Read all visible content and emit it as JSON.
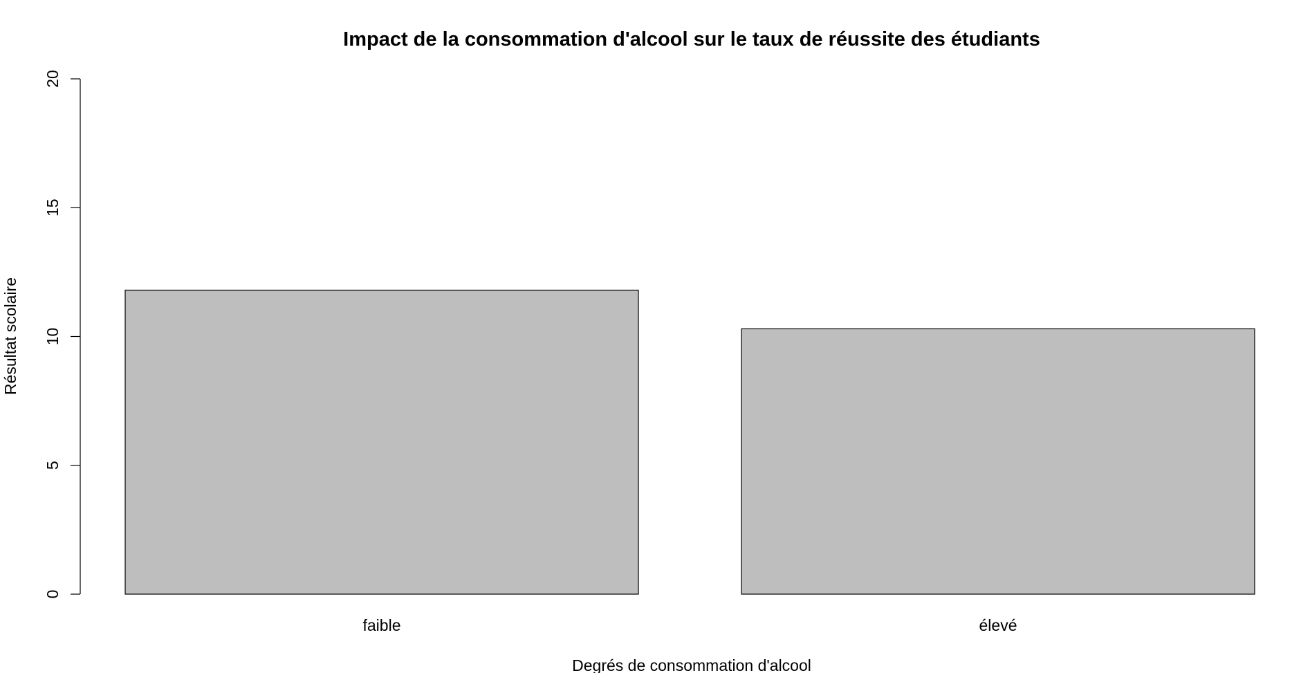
{
  "chart_data": {
    "type": "bar",
    "title": "Impact de la consommation d'alcool sur le taux de réussite des étudiants",
    "xlabel": "Degrés de consommation d'alcool",
    "ylabel": "Résultat scolaire",
    "categories": [
      "faible",
      "élevé"
    ],
    "values": [
      11.8,
      10.3
    ],
    "ylim": [
      0,
      20
    ],
    "yticks": [
      0,
      5,
      10,
      15,
      20
    ],
    "grid": false,
    "legend": "none",
    "bar_color": "#bebebe",
    "bar_stroke": "#000000"
  }
}
